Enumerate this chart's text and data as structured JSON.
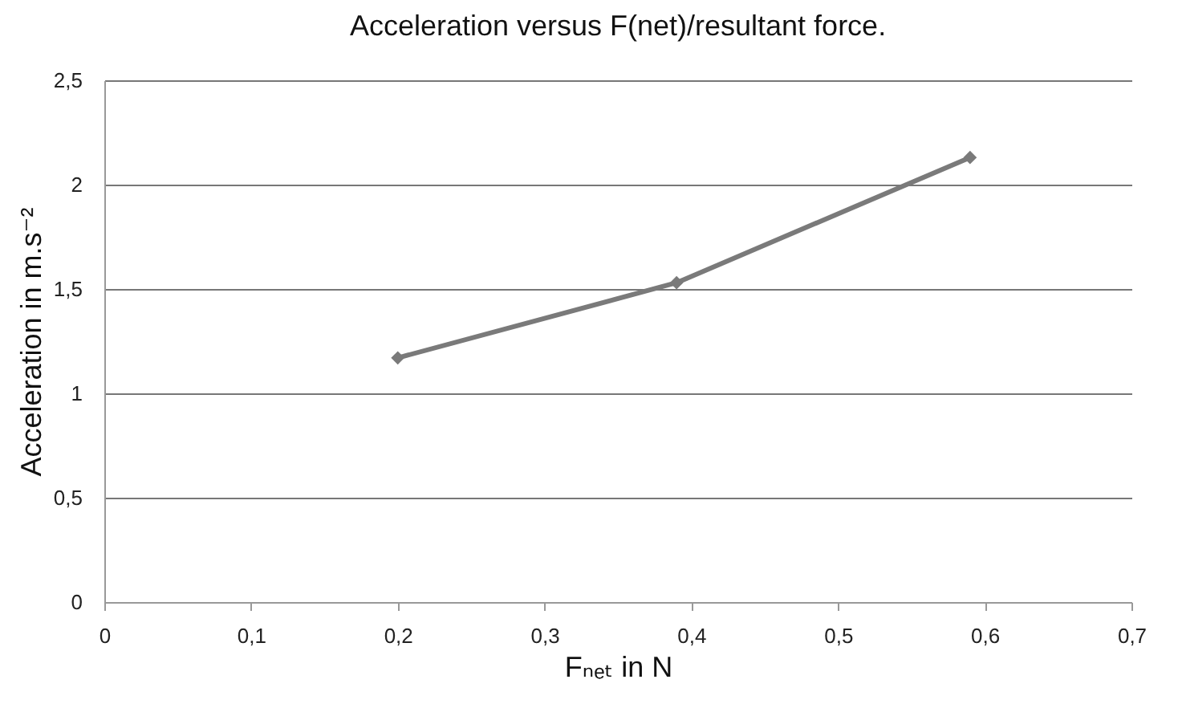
{
  "chart_data": {
    "type": "line",
    "title": "Acceleration versus F(net)/resultant force.",
    "xlabel": "Fₙₑₜ in N",
    "ylabel": "Acceleration in m.s⁻²",
    "x": [
      0.2,
      0.39,
      0.59
    ],
    "series": [
      {
        "color": "#7a7a7a",
        "values": [
          1.17,
          1.53,
          2.13
        ]
      }
    ],
    "xlim": [
      0,
      0.7
    ],
    "xticks": [
      {
        "value": 0,
        "label": "0"
      },
      {
        "value": 0.1,
        "label": "0,1"
      },
      {
        "value": 0.2,
        "label": "0,2"
      },
      {
        "value": 0.3,
        "label": "0,3"
      },
      {
        "value": 0.4,
        "label": "0,4"
      },
      {
        "value": 0.5,
        "label": "0,5"
      },
      {
        "value": 0.6,
        "label": "0,6"
      },
      {
        "value": 0.7,
        "label": "0,7"
      }
    ],
    "ylim": [
      0,
      2.5
    ],
    "yticks": [
      {
        "value": 0,
        "label": "0"
      },
      {
        "value": 0.5,
        "label": "0,5"
      },
      {
        "value": 1,
        "label": "1"
      },
      {
        "value": 1.5,
        "label": "1,5"
      },
      {
        "value": 2,
        "label": "2"
      },
      {
        "value": 2.5,
        "label": "2,5"
      }
    ],
    "grid": "y",
    "marker": "diamond",
    "line_style": "solid"
  }
}
